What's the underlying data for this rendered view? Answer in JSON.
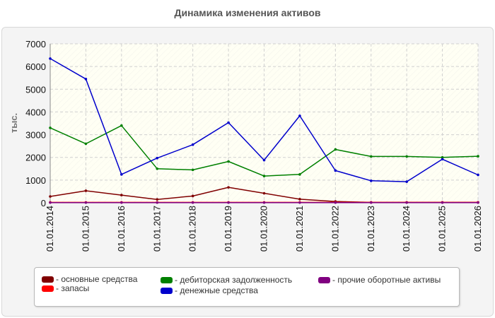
{
  "chart_data": {
    "type": "line",
    "title": "Динамика изменения активов",
    "ylabel": "тыс.",
    "xlabel": "",
    "ylim": [
      0,
      7000
    ],
    "yticks": [
      0,
      1000,
      2000,
      3000,
      4000,
      5000,
      6000,
      7000
    ],
    "grid": true,
    "legend_position": "bottom",
    "categories": [
      "01.01.2014",
      "01.01.2015",
      "01.01.2016",
      "01.01.2017",
      "01.01.2018",
      "01.01.2019",
      "01.01.2020",
      "01.01.2021",
      "01.01.2022",
      "01.01.2023",
      "01.01.2024",
      "01.01.2025",
      "01.01.2026"
    ],
    "series": [
      {
        "name": "- основные средства",
        "color": "#800000",
        "values": [
          280,
          530,
          340,
          150,
          300,
          680,
          420,
          160,
          60,
          20,
          20,
          20,
          20
        ]
      },
      {
        "name": "- запасы",
        "color": "#ff0000",
        "values": [
          20,
          20,
          20,
          20,
          20,
          20,
          20,
          20,
          20,
          20,
          20,
          20,
          20
        ]
      },
      {
        "name": "- дебиторская задолженность",
        "color": "#008000",
        "values": [
          3300,
          2600,
          3400,
          1500,
          1450,
          1820,
          1180,
          1250,
          2350,
          2040,
          2040,
          2000,
          2050
        ]
      },
      {
        "name": "- денежные средства",
        "color": "#0000cc",
        "values": [
          6350,
          5450,
          1250,
          1970,
          2560,
          3530,
          1880,
          3830,
          1420,
          970,
          930,
          1920,
          1230
        ]
      },
      {
        "name": "- прочие оборотные активы",
        "color": "#800080",
        "values": [
          10,
          10,
          10,
          10,
          10,
          10,
          10,
          10,
          10,
          10,
          10,
          10,
          10
        ]
      }
    ]
  }
}
